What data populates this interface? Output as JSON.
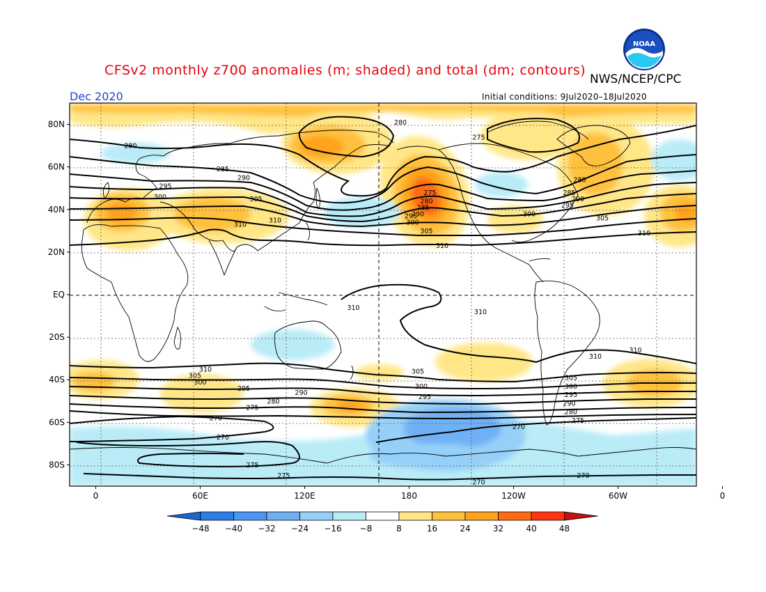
{
  "header": {
    "title": "CFSv2 monthly z700 anomalies (m; shaded) and total (dm; contours)",
    "agency": "NWS/NCEP/CPC",
    "period": "Dec 2020",
    "initial_conditions": "Initial conditions: 9Jul2020–18Jul2020",
    "logo_text": "NOAA"
  },
  "map": {
    "lat_labels": [
      "80N",
      "60N",
      "40N",
      "20N",
      "EQ",
      "20S",
      "40S",
      "60S",
      "80S"
    ],
    "lon_labels": [
      "0",
      "60E",
      "120E",
      "180",
      "120W",
      "60W",
      "0"
    ],
    "contour_labels": [
      {
        "v": "280",
        "lon": 175,
        "lat": 81
      },
      {
        "v": "275",
        "lon": -140,
        "lat": 74
      },
      {
        "v": "280",
        "lon": 20,
        "lat": 70
      },
      {
        "v": "285",
        "lon": 73,
        "lat": 59
      },
      {
        "v": "290",
        "lon": 85,
        "lat": 55
      },
      {
        "v": "295",
        "lon": 40,
        "lat": 51
      },
      {
        "v": "300",
        "lon": 37,
        "lat": 46
      },
      {
        "v": "305",
        "lon": 92,
        "lat": 45
      },
      {
        "v": "310",
        "lon": 83,
        "lat": 33
      },
      {
        "v": "310",
        "lon": 103,
        "lat": 35
      },
      {
        "v": "275",
        "lon": -168,
        "lat": 48
      },
      {
        "v": "280",
        "lon": -170,
        "lat": 44
      },
      {
        "v": "285",
        "lon": -172,
        "lat": 41
      },
      {
        "v": "290",
        "lon": -175,
        "lat": 38
      },
      {
        "v": "295",
        "lon": -179,
        "lat": 37
      },
      {
        "v": "300",
        "lon": -178,
        "lat": 34
      },
      {
        "v": "305",
        "lon": -170,
        "lat": 30
      },
      {
        "v": "310",
        "lon": -161,
        "lat": 23
      },
      {
        "v": "280",
        "lon": -82,
        "lat": 54
      },
      {
        "v": "285",
        "lon": -88,
        "lat": 48
      },
      {
        "v": "290",
        "lon": -83,
        "lat": 45
      },
      {
        "v": "295",
        "lon": -89,
        "lat": 42
      },
      {
        "v": "300",
        "lon": -111,
        "lat": 38
      },
      {
        "v": "305",
        "lon": -69,
        "lat": 36
      },
      {
        "v": "310",
        "lon": -45,
        "lat": 29
      },
      {
        "v": "310",
        "lon": -139,
        "lat": -8
      },
      {
        "v": "310",
        "lon": 148,
        "lat": -6
      },
      {
        "v": "310",
        "lon": -50,
        "lat": -26
      },
      {
        "v": "310",
        "lon": -73,
        "lat": -29
      },
      {
        "v": "310",
        "lon": 63,
        "lat": -35
      },
      {
        "v": "305",
        "lon": -175,
        "lat": -36
      },
      {
        "v": "300",
        "lon": -173,
        "lat": -43
      },
      {
        "v": "295",
        "lon": -171,
        "lat": -48
      },
      {
        "v": "305",
        "lon": 57,
        "lat": -38
      },
      {
        "v": "300",
        "lon": 60,
        "lat": -41
      },
      {
        "v": "295",
        "lon": 85,
        "lat": -44
      },
      {
        "v": "290",
        "lon": 118,
        "lat": -46
      },
      {
        "v": "280",
        "lon": 102,
        "lat": -50
      },
      {
        "v": "275",
        "lon": 90,
        "lat": -53
      },
      {
        "v": "270",
        "lon": 69,
        "lat": -58
      },
      {
        "v": "270",
        "lon": -117,
        "lat": -62
      },
      {
        "v": "270",
        "lon": 73,
        "lat": -67
      },
      {
        "v": "275",
        "lon": 90,
        "lat": -80
      },
      {
        "v": "275",
        "lon": 108,
        "lat": -85
      },
      {
        "v": "270",
        "lon": -140,
        "lat": -88
      },
      {
        "v": "270",
        "lon": -80,
        "lat": -85
      },
      {
        "v": "305",
        "lon": -87,
        "lat": -39
      },
      {
        "v": "300",
        "lon": -87,
        "lat": -43
      },
      {
        "v": "295",
        "lon": -87,
        "lat": -47
      },
      {
        "v": "290",
        "lon": -88,
        "lat": -51
      },
      {
        "v": "280",
        "lon": -87,
        "lat": -55
      },
      {
        "v": "275",
        "lon": -83,
        "lat": -59
      }
    ]
  },
  "colorbar": {
    "labels": [
      "-48",
      "-40",
      "-32",
      "-24",
      "-16",
      "-8",
      "8",
      "16",
      "24",
      "32",
      "40",
      "48"
    ],
    "colors": [
      "#1965d6",
      "#2c7ee8",
      "#4a96f2",
      "#6fb0f5",
      "#96d0f8",
      "#b9ecf7",
      "#ffffff",
      "#ffe788",
      "#ffc13d",
      "#ffa31c",
      "#ff6b12",
      "#ff3410",
      "#c8100d"
    ]
  }
}
